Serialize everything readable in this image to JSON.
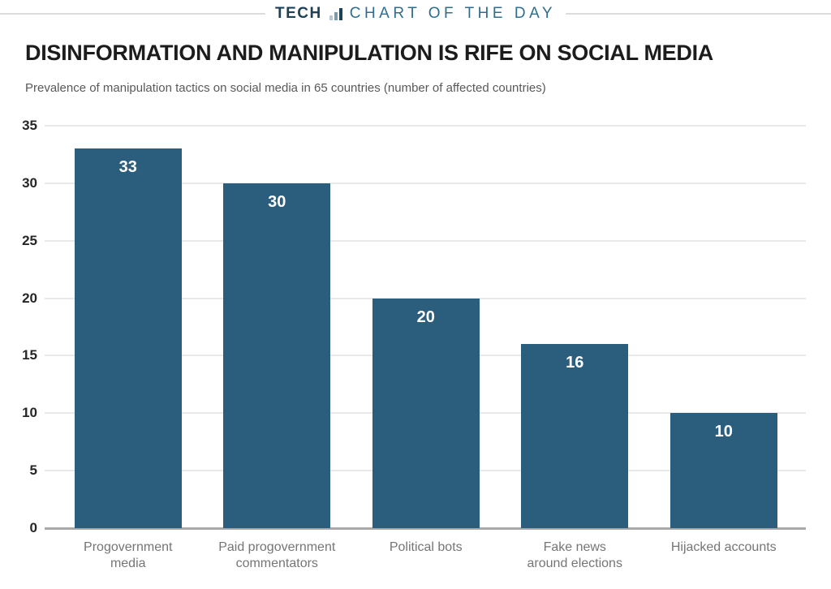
{
  "header": {
    "brand": "TECH",
    "series_title": "CHART OF THE DAY",
    "icon": "bar-chart-icon"
  },
  "title": "DISINFORMATION AND MANIPULATION IS RIFE ON SOCIAL MEDIA",
  "subtitle": "Prevalence of manipulation tactics on social media in 65 countries (number of affected countries)",
  "colors": {
    "bar": "#2B5E7D",
    "brand_dark": "#1C4257",
    "brand_light": "#2E6D8D",
    "grid": "#E9E9E9",
    "axis": "#A9A9A9",
    "value_label": "#FFFFFF",
    "x_label": "#757575",
    "y_label": "#262626"
  },
  "chart_data": {
    "type": "bar",
    "title": "DISINFORMATION AND MANIPULATION IS RIFE ON SOCIAL MEDIA",
    "subtitle": "Prevalence of manipulation tactics on social media in 65 countries (number of affected countries)",
    "categories": [
      "Progovernment media",
      "Paid progovernment commentators",
      "Political bots",
      "Fake news around elections",
      "Hijacked accounts"
    ],
    "categories_wrapped": [
      [
        "Progovernment",
        "media"
      ],
      [
        "Paid progovernment",
        "commentators"
      ],
      [
        "Political bots"
      ],
      [
        "Fake news",
        "around elections"
      ],
      [
        "Hijacked accounts"
      ]
    ],
    "values": [
      33,
      30,
      20,
      16,
      10
    ],
    "value_labels": true,
    "xlabel": "",
    "ylabel": "",
    "ylim": [
      0,
      35
    ],
    "ytick_step": 5,
    "yticks": [
      0,
      5,
      10,
      15,
      20,
      25,
      30,
      35
    ],
    "grid": true,
    "legend": false
  }
}
